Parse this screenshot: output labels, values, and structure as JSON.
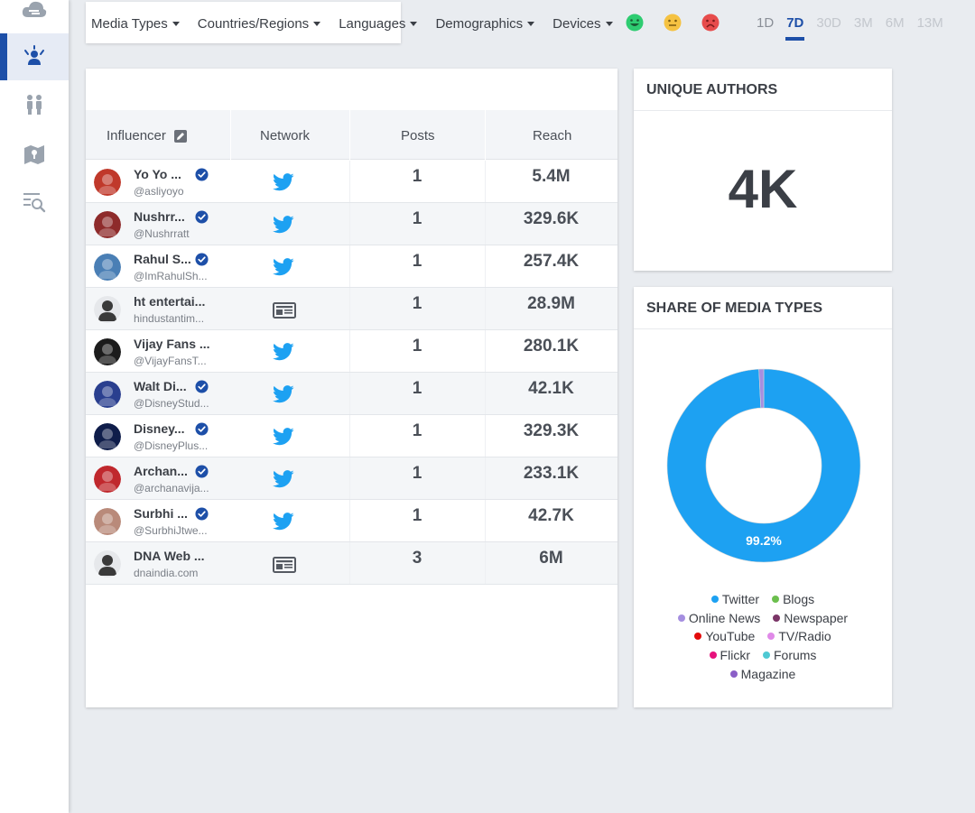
{
  "filters": [
    {
      "label": "Media Types"
    },
    {
      "label": "Countries/Regions"
    },
    {
      "label": "Languages"
    },
    {
      "label": "Demographics"
    },
    {
      "label": "Devices"
    }
  ],
  "sentiment_icons": [
    "positive-face-icon",
    "neutral-face-icon",
    "negative-face-icon"
  ],
  "sentiment_colors": {
    "positive": "#2ecc71",
    "neutral": "#f5c242",
    "negative": "#e74c4c"
  },
  "time_ranges": [
    {
      "label": "1D"
    },
    {
      "label": "7D",
      "active": true
    },
    {
      "label": "30D"
    },
    {
      "label": "3M"
    },
    {
      "label": "6M"
    },
    {
      "label": "13M"
    }
  ],
  "sidebar": {
    "items": [
      {
        "icon": "cloud-icon"
      },
      {
        "icon": "influencer-icon",
        "active": true
      },
      {
        "icon": "people-icon"
      },
      {
        "icon": "map-icon"
      },
      {
        "icon": "search-list-icon"
      }
    ]
  },
  "table": {
    "headers": {
      "influencer": "Influencer",
      "network": "Network",
      "posts": "Posts",
      "reach": "Reach"
    },
    "rows": [
      {
        "name": "Yo Yo ...",
        "handle": "@asliyoyo",
        "verified": true,
        "network": "twitter",
        "posts": "1",
        "reach": "5.4M",
        "avatar_color": "#c0392b"
      },
      {
        "name": "Nushrr...",
        "handle": "@Nushrratt",
        "verified": true,
        "network": "twitter",
        "posts": "1",
        "reach": "329.6K",
        "avatar_color": "#8e2b2b"
      },
      {
        "name": "Rahul S...",
        "handle": "@ImRahulSh...",
        "verified": true,
        "network": "twitter",
        "posts": "1",
        "reach": "257.4K",
        "avatar_color": "#4a7fb5"
      },
      {
        "name": "ht entertai...",
        "handle": "hindustantim...",
        "verified": false,
        "network": "news",
        "posts": "1",
        "reach": "28.9M",
        "avatar_color": "#d5d8dc"
      },
      {
        "name": "Vijay Fans ...",
        "handle": "@VijayFansT...",
        "verified": false,
        "network": "twitter",
        "posts": "1",
        "reach": "280.1K",
        "avatar_color": "#1c1c1c"
      },
      {
        "name": "Walt Di...",
        "handle": "@DisneyStud...",
        "verified": true,
        "network": "twitter",
        "posts": "1",
        "reach": "42.1K",
        "avatar_color": "#2a3f8f"
      },
      {
        "name": "Disney...",
        "handle": "@DisneyPlus...",
        "verified": true,
        "network": "twitter",
        "posts": "1",
        "reach": "329.3K",
        "avatar_color": "#0f1d4a"
      },
      {
        "name": "Archan...",
        "handle": "@archanavija...",
        "verified": true,
        "network": "twitter",
        "posts": "1",
        "reach": "233.1K",
        "avatar_color": "#c0282d"
      },
      {
        "name": "Surbhi ...",
        "handle": "@SurbhiJtwe...",
        "verified": true,
        "network": "twitter",
        "posts": "1",
        "reach": "42.7K",
        "avatar_color": "#b98a7a"
      },
      {
        "name": "DNA Web ...",
        "handle": "dnaindia.com",
        "verified": false,
        "network": "news",
        "posts": "3",
        "reach": "6M",
        "avatar_color": "#d5d8dc"
      }
    ]
  },
  "unique_authors": {
    "title": "UNIQUE AUTHORS",
    "value": "4K"
  },
  "media_share": {
    "title": "SHARE OF MEDIA TYPES",
    "center_label": "99.2%"
  },
  "chart_data": {
    "type": "pie",
    "donut": true,
    "categories": [
      "Twitter",
      "Blogs",
      "Online News",
      "Newspaper",
      "YouTube",
      "TV/Radio",
      "Flickr",
      "Forums",
      "Magazine"
    ],
    "values": [
      99.2,
      0.0,
      0.8,
      0.0,
      0.0,
      0.0,
      0.0,
      0.0,
      0.0
    ],
    "colors": [
      "#1da1f2",
      "#6cbf4e",
      "#a58ee0",
      "#7b3567",
      "#e30b0b",
      "#e08ae8",
      "#e6127c",
      "#4fc9d3",
      "#8b5fc7"
    ],
    "data_labels": [
      "99.2%"
    ],
    "legend": "bottom"
  }
}
